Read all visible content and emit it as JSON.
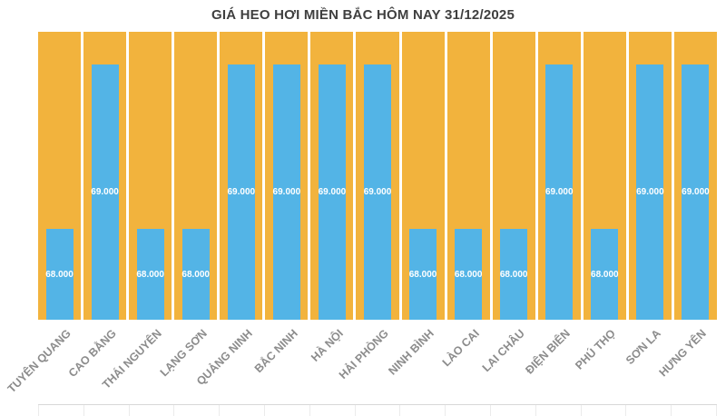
{
  "chart_data": {
    "type": "bar",
    "title": "GIÁ HEO HƠI MIỀN BẮC HÔM NAY 31/12/2025",
    "categories": [
      "TUYÊN QUANG",
      "CAO BẰNG",
      "THÁI NGUYÊN",
      "LẠNG SƠN",
      "QUẢNG NINH",
      "BẮC NINH",
      "HÀ NỘI",
      "HẢI PHÒNG",
      "NINH BÌNH",
      "LÀO CAI",
      "LAI CHÂU",
      "ĐIỆN BIÊN",
      "PHÚ THỌ",
      "SƠN LA",
      "HƯNG YÊN"
    ],
    "values": [
      68000,
      69000,
      68000,
      68000,
      69000,
      69000,
      69000,
      69000,
      68000,
      68000,
      68000,
      69000,
      68000,
      69000,
      69000
    ],
    "value_labels": [
      "68.000",
      "69.000",
      "68.000",
      "68.000",
      "69.000",
      "69.000",
      "69.000",
      "69.000",
      "68.000",
      "68.000",
      "68.000",
      "69.000",
      "68.000",
      "69.000",
      "69.000"
    ],
    "xlabel": "",
    "ylabel": "",
    "ylim": [
      67450,
      69200
    ],
    "grid": false,
    "legend": false,
    "colors": {
      "bar": "#53B4E6",
      "panel": "#F2B33D",
      "value_label": "#FFFFFF",
      "axis_label": "#8C8C8C",
      "title": "#3F3F3F"
    }
  }
}
